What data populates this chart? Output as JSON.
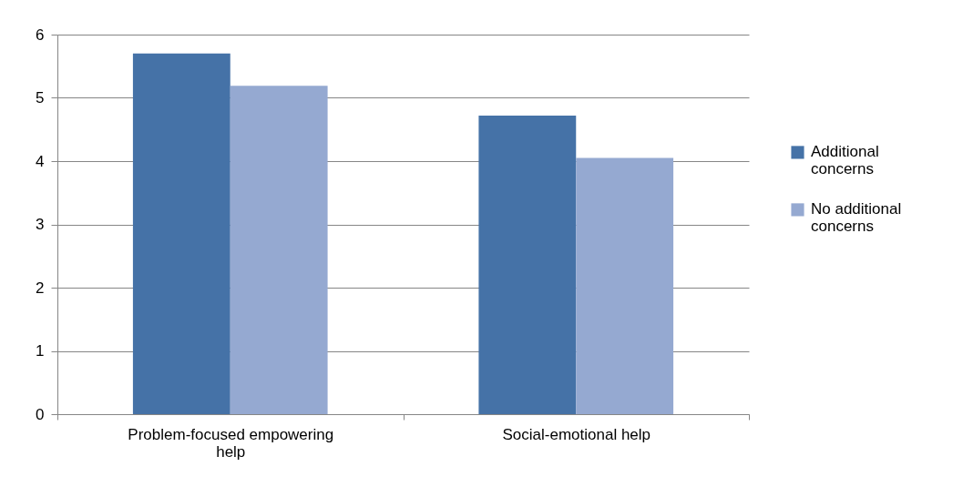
{
  "chart_data": {
    "type": "bar",
    "categories": [
      "Problem-focused empowering help",
      "Social-emotional help"
    ],
    "series": [
      {
        "name": "Additional concerns",
        "color": "#4572a7",
        "values": [
          5.7,
          4.72
        ]
      },
      {
        "name": "No additional concerns",
        "color": "#95a9d1",
        "values": [
          5.19,
          4.05
        ]
      }
    ],
    "ylim": [
      0,
      6
    ],
    "yticks": [
      0,
      1,
      2,
      3,
      4,
      5,
      6
    ],
    "grid": "y",
    "legend": "right"
  }
}
